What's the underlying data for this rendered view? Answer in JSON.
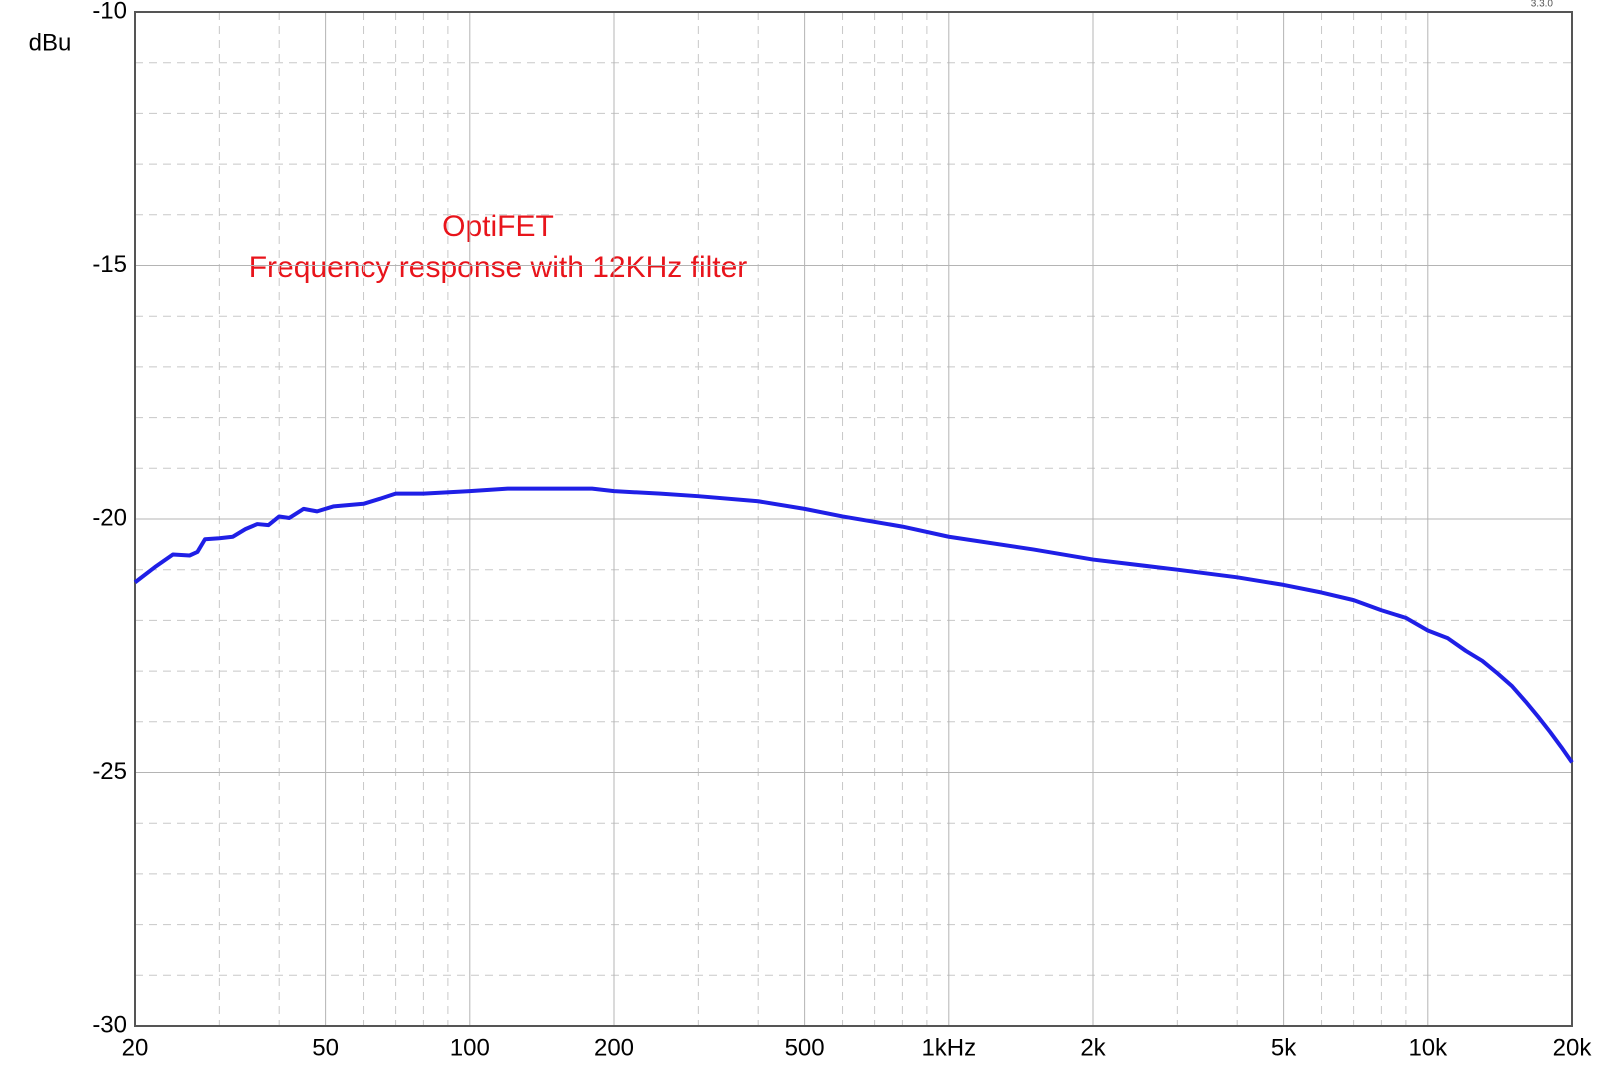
{
  "chart_data": {
    "type": "line",
    "annotations": [
      "OptiFET",
      "Frequency response with 12KHz filter"
    ],
    "version": "3.3.0",
    "ylabel": "dBu",
    "xscale": "log",
    "grid": true,
    "x": [
      20,
      22,
      24,
      26,
      27,
      28,
      30,
      32,
      34,
      36,
      38,
      40,
      42,
      45,
      48,
      52,
      60,
      65,
      70,
      80,
      100,
      120,
      150,
      180,
      200,
      250,
      300,
      400,
      500,
      600,
      800,
      1000,
      1500,
      2000,
      3000,
      4000,
      5000,
      6000,
      7000,
      8000,
      9000,
      10000,
      11000,
      12000,
      13000,
      14000,
      15000,
      16000,
      17000,
      18000,
      19000,
      20000
    ],
    "series": [
      {
        "color": "#1f1fe6",
        "values": [
          -21.25,
          -20.95,
          -20.7,
          -20.72,
          -20.65,
          -20.4,
          -20.38,
          -20.35,
          -20.2,
          -20.1,
          -20.12,
          -19.95,
          -19.98,
          -19.8,
          -19.85,
          -19.75,
          -19.7,
          -19.6,
          -19.5,
          -19.5,
          -19.45,
          -19.4,
          -19.4,
          -19.4,
          -19.45,
          -19.5,
          -19.55,
          -19.65,
          -19.8,
          -19.95,
          -20.15,
          -20.35,
          -20.6,
          -20.8,
          -21.0,
          -21.15,
          -21.3,
          -21.45,
          -21.6,
          -21.8,
          -21.95,
          -22.2,
          -22.35,
          -22.6,
          -22.8,
          -23.05,
          -23.3,
          -23.6,
          -23.9,
          -24.2,
          -24.5,
          -24.8
        ]
      }
    ],
    "xlim": [
      20,
      20000
    ],
    "xticks": [
      20,
      50,
      100,
      200,
      500,
      {
        "value": 1000,
        "label": "1kHz"
      },
      {
        "value": 2000,
        "label": "2k"
      },
      {
        "value": 5000,
        "label": "5k"
      },
      {
        "value": 10000,
        "label": "10k"
      },
      {
        "value": 20000,
        "label": "20k"
      }
    ],
    "xminor": [
      30,
      40,
      60,
      70,
      80,
      90,
      300,
      400,
      600,
      700,
      800,
      900,
      3000,
      4000,
      6000,
      7000,
      8000,
      9000
    ],
    "ylim": [
      -30,
      -10
    ],
    "yticks": [
      -10,
      -15,
      -20,
      -25,
      -30
    ],
    "yminor": [
      -11,
      -12,
      -13,
      -14,
      -16,
      -17,
      -18,
      -19,
      -21,
      -22,
      -23,
      -24,
      -26,
      -27,
      -28,
      -29
    ]
  }
}
